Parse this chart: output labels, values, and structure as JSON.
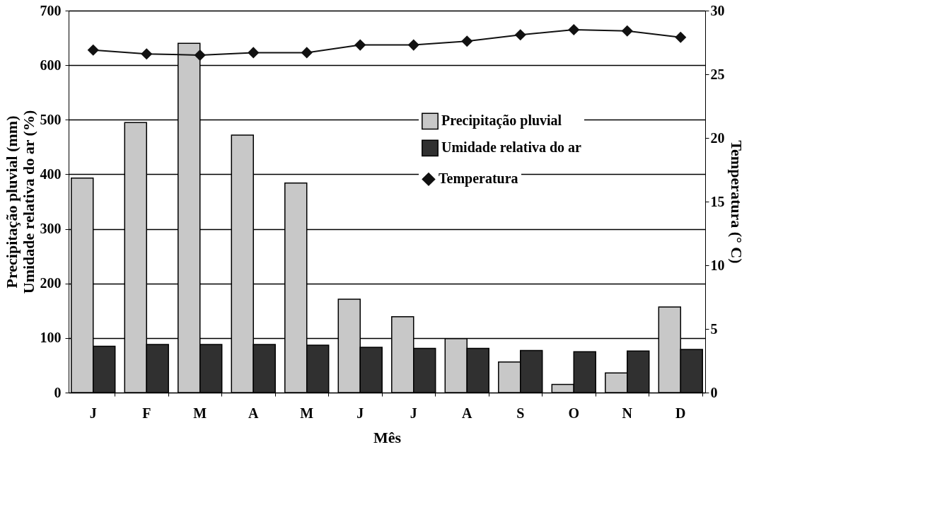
{
  "chart_data": {
    "type": "bar",
    "xlabel": "Mês",
    "ylabel": "Precipitação pluvial (mm)\nUmidade relativa do ar (%)",
    "y2label": "Temperatura (° C)",
    "categories": [
      "J",
      "F",
      "M",
      "A",
      "M",
      "J",
      "J",
      "A",
      "S",
      "O",
      "N",
      "D"
    ],
    "series": [
      {
        "name": "Precipitação pluvial",
        "color": "#c8c8c8",
        "values": [
          393,
          495,
          640,
          472,
          384,
          171,
          139,
          99,
          56,
          15,
          36,
          157
        ]
      },
      {
        "name": "Umidade relativa do ar",
        "color": "#303030",
        "values": [
          85,
          88,
          88,
          88,
          87,
          83,
          81,
          81,
          77,
          75,
          76,
          79
        ]
      },
      {
        "name": "Temperatura",
        "type": "line",
        "axis": "y2",
        "color": "#111111",
        "marker": "diamond",
        "values": [
          26.9,
          26.6,
          26.5,
          26.7,
          26.7,
          27.3,
          27.3,
          27.6,
          28.1,
          28.5,
          28.4,
          27.9
        ]
      }
    ],
    "ylim": [
      0,
      700
    ],
    "yticks": [
      0,
      100,
      200,
      300,
      400,
      500,
      600,
      700
    ],
    "y2lim": [
      0,
      30
    ],
    "y2ticks": [
      0,
      5,
      10,
      15,
      20,
      25,
      30
    ],
    "grid": "y",
    "legend": "right"
  }
}
